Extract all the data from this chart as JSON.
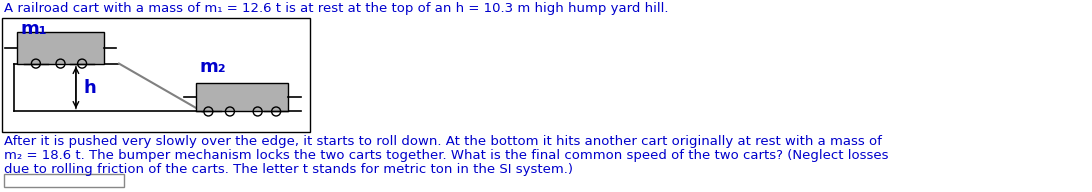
{
  "title_line1": "A railroad cart with a mass of m₁ = 12.6 t is at rest at the top of an h = 10.3 m high hump yard hill.",
  "body_text_line1": "After it is pushed very slowly over the edge, it starts to roll down. At the bottom it hits another cart originally at rest with a mass of",
  "body_text_line2": "m₂ = 18.6 t. The bumper mechanism locks the two carts together. What is the final common speed of the two carts? (Neglect losses",
  "body_text_line3": "due to rolling friction of the carts. The letter t stands for metric ton in the SI system.)",
  "text_color": "#0000cc",
  "background_color": "#ffffff",
  "diagram_box_color": "#000000",
  "cart_fill": "#b0b0b0",
  "cart_edge": "#000000",
  "ground_color": "#000000",
  "ramp_color": "#808080",
  "arrow_color": "#000000",
  "label_m1": "m₁",
  "label_m2": "m₂",
  "label_h": "h",
  "font_size_title": 9.5,
  "font_size_body": 9.5,
  "font_size_label": 12
}
